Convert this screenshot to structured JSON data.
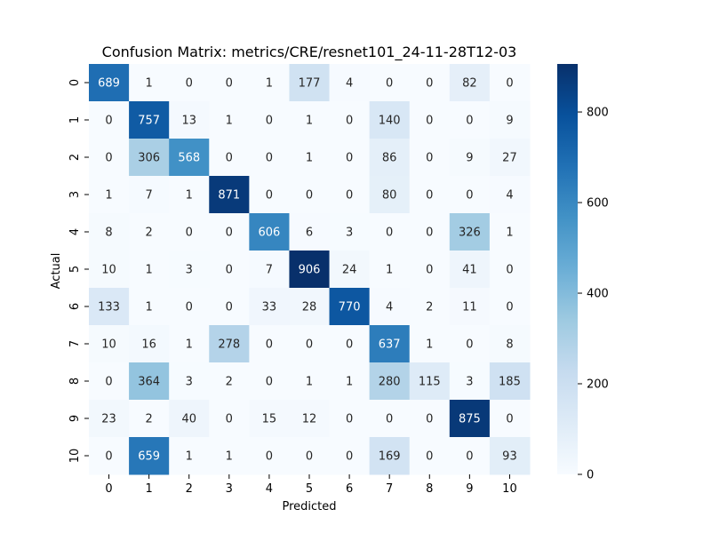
{
  "chart_data": {
    "type": "heatmap",
    "title": "Confusion Matrix: metrics/CRE/resnet101_24-11-28T12-03",
    "xlabel": "Predicted",
    "ylabel": "Actual",
    "x_ticks": [
      "0",
      "1",
      "2",
      "3",
      "4",
      "5",
      "6",
      "7",
      "8",
      "9",
      "10"
    ],
    "y_ticks": [
      "0",
      "1",
      "2",
      "3",
      "4",
      "5",
      "6",
      "7",
      "8",
      "9",
      "10"
    ],
    "matrix": [
      [
        689,
        1,
        0,
        0,
        1,
        177,
        4,
        0,
        0,
        82,
        0
      ],
      [
        0,
        757,
        13,
        1,
        0,
        1,
        0,
        140,
        0,
        0,
        9
      ],
      [
        0,
        306,
        568,
        0,
        0,
        1,
        0,
        86,
        0,
        9,
        27
      ],
      [
        1,
        7,
        1,
        871,
        0,
        0,
        0,
        80,
        0,
        0,
        4
      ],
      [
        8,
        2,
        0,
        0,
        606,
        6,
        3,
        0,
        0,
        326,
        1
      ],
      [
        10,
        1,
        3,
        0,
        7,
        906,
        24,
        1,
        0,
        41,
        0
      ],
      [
        133,
        1,
        0,
        0,
        33,
        28,
        770,
        4,
        2,
        11,
        0
      ],
      [
        10,
        16,
        1,
        278,
        0,
        0,
        0,
        637,
        1,
        0,
        8
      ],
      [
        0,
        364,
        3,
        2,
        0,
        1,
        1,
        280,
        115,
        3,
        185
      ],
      [
        23,
        2,
        40,
        0,
        15,
        12,
        0,
        0,
        0,
        875,
        0
      ],
      [
        0,
        659,
        1,
        1,
        0,
        0,
        0,
        169,
        0,
        0,
        93
      ]
    ],
    "colormap": "Blues",
    "vmin": 0,
    "vmax": 906,
    "colorbar_ticks": [
      0,
      200,
      400,
      600,
      800
    ]
  }
}
